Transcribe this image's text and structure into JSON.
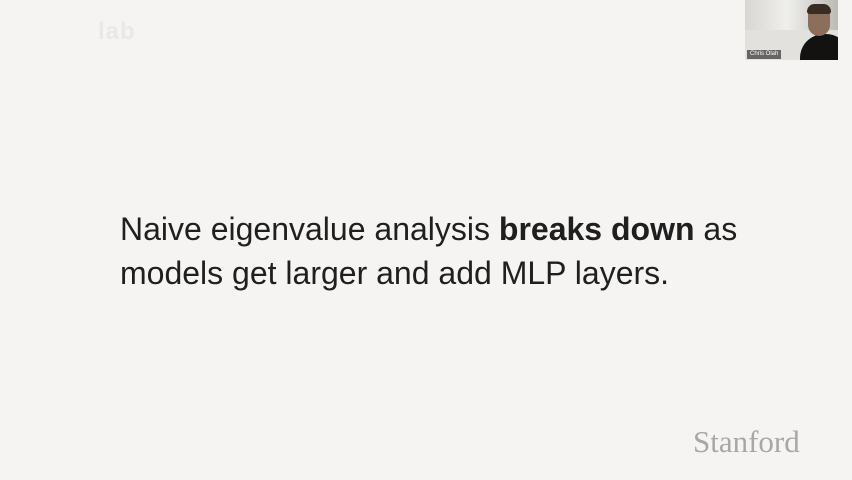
{
  "slide": {
    "logo_text": "lab",
    "text_before": "Naive eigenvalue analysis ",
    "text_bold": "breaks down",
    "text_after": " as models get larger and add MLP layers.",
    "footer_wordmark": "Stanford"
  },
  "webcam": {
    "name_label": "Chris Olah"
  },
  "colors": {
    "background": "#f5f4f2",
    "text": "#1f1f1f",
    "wordmark": "#a9a7a4"
  }
}
